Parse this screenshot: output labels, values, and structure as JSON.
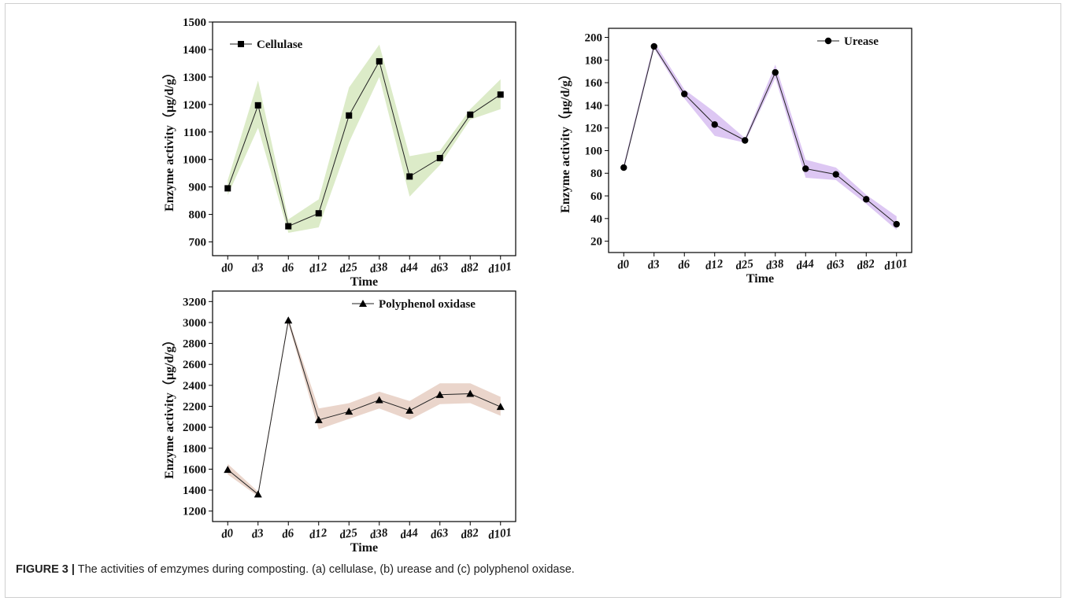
{
  "caption": {
    "label": "FIGURE 3 |",
    "text": "The activities of emzymes during composting. (a) cellulase, (b) urease and (c) polyphenol oxidase."
  },
  "chart_data": [
    {
      "type": "line",
      "categories": [
        "d0",
        "d3",
        "d6",
        "d12",
        "d25",
        "d38",
        "d44",
        "d63",
        "d82",
        "d101"
      ],
      "series": [
        {
          "name": "Cellulase",
          "marker": "square",
          "values": [
            895,
            1197,
            757,
            804,
            1160,
            1357,
            938,
            1005,
            1163,
            1236
          ],
          "band_low": [
            870,
            1115,
            733,
            753,
            1062,
            1300,
            865,
            980,
            1145,
            1183
          ],
          "band_high": [
            925,
            1287,
            782,
            855,
            1262,
            1418,
            1012,
            1032,
            1183,
            1292
          ]
        }
      ],
      "band_color": "#dcebc8",
      "xlabel": "Time",
      "ylabel": "Enzyme activity（μg/d/g）",
      "ylim": [
        650,
        1500
      ],
      "yticks": [
        700,
        800,
        900,
        1000,
        1100,
        1200,
        1300,
        1400,
        1500
      ],
      "legend": "top-left"
    },
    {
      "type": "line",
      "categories": [
        "d0",
        "d3",
        "d6",
        "d12",
        "d25",
        "d38",
        "d44",
        "d63",
        "d82",
        "d101"
      ],
      "series": [
        {
          "name": "Urease",
          "marker": "circle",
          "values": [
            85,
            192,
            150,
            123,
            109,
            169,
            84,
            79,
            57,
            35
          ],
          "band_low": [
            83,
            190,
            146,
            113,
            107,
            164,
            76,
            74,
            53,
            30
          ],
          "band_high": [
            88,
            196,
            154,
            134,
            111,
            176,
            92,
            85,
            61,
            42
          ]
        }
      ],
      "band_color": "#ddc7f3",
      "xlabel": "Time",
      "ylabel": "Enzyme activity（μg/d/g）",
      "ylim": [
        10,
        208
      ],
      "yticks": [
        20,
        40,
        60,
        80,
        100,
        120,
        140,
        160,
        180,
        200
      ],
      "legend": "top-right"
    },
    {
      "type": "line",
      "categories": [
        "d0",
        "d3",
        "d6",
        "d12",
        "d25",
        "d38",
        "d44",
        "d63",
        "d82",
        "d101"
      ],
      "series": [
        {
          "name": "Polyphenol oxidase",
          "marker": "triangle",
          "values": [
            1595,
            1360,
            3020,
            2070,
            2150,
            2260,
            2160,
            2310,
            2320,
            2195
          ],
          "band_low": [
            1550,
            1340,
            2990,
            1980,
            2080,
            2180,
            2070,
            2220,
            2230,
            2110
          ],
          "band_high": [
            1650,
            1385,
            3040,
            2180,
            2230,
            2340,
            2250,
            2420,
            2420,
            2290
          ]
        }
      ],
      "band_color": "#ead5cb",
      "xlabel": "Time",
      "ylabel": "Enzyme activity（μg/d/g）",
      "ylim": [
        1100,
        3300
      ],
      "yticks": [
        1200,
        1400,
        1600,
        1800,
        2000,
        2200,
        2400,
        2600,
        2800,
        3000,
        3200
      ],
      "legend": "top-right"
    }
  ]
}
